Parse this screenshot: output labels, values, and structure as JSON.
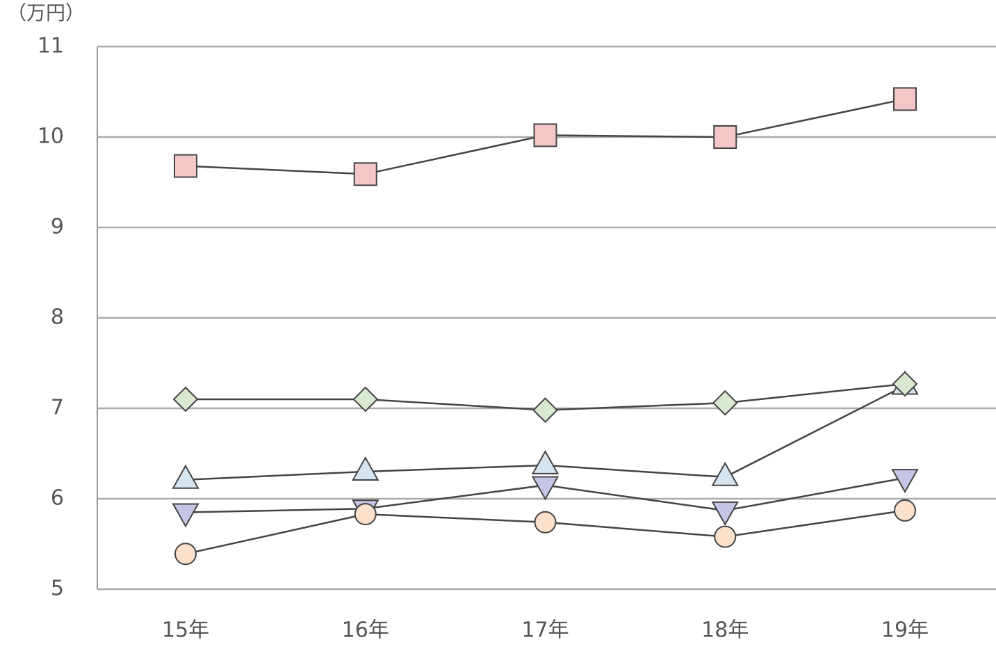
{
  "chart_data": {
    "type": "line",
    "y_unit_label": "（万円）",
    "categories": [
      "15年",
      "16年",
      "17年",
      "18年",
      "19年"
    ],
    "series": [
      {
        "marker": "triangle-down",
        "color": "#c5c5e6",
        "values": [
          5.85,
          5.89,
          6.15,
          5.87,
          6.23
        ]
      },
      {
        "marker": "triangle-up",
        "color": "#d6e4f0",
        "values": [
          6.21,
          6.3,
          6.37,
          6.24,
          7.25
        ]
      },
      {
        "marker": "circle",
        "color": "#fbe0cc",
        "values": [
          5.39,
          5.83,
          5.74,
          5.58,
          5.87
        ]
      },
      {
        "marker": "diamond",
        "color": "#d9e8d0",
        "values": [
          7.1,
          7.1,
          6.98,
          7.06,
          7.27
        ]
      },
      {
        "marker": "square",
        "color": "#f4c7c7",
        "values": [
          9.68,
          9.59,
          10.02,
          10.0,
          10.42
        ]
      }
    ],
    "ylim": [
      5,
      11
    ],
    "yticks": [
      5,
      6,
      7,
      8,
      9,
      10,
      11
    ],
    "grid": true
  }
}
